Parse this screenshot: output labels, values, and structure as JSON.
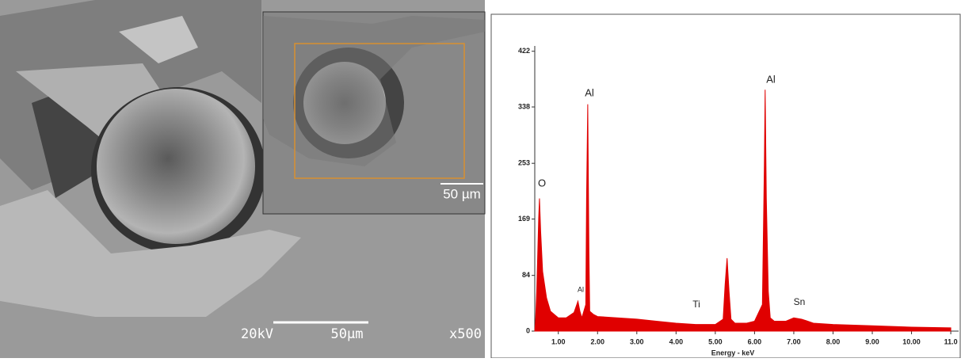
{
  "sem_image": {
    "scale_label": "20kV",
    "scale_bar_label": "50µm",
    "magnification": "x500",
    "inset_scale_label": "50 µm"
  },
  "chart_data": {
    "type": "area",
    "color": "#e00000",
    "x": [
      0.4,
      0.42,
      0.45,
      0.5,
      0.52,
      0.55,
      0.6,
      0.7,
      0.8,
      0.9,
      1.0,
      1.2,
      1.4,
      1.5,
      1.55,
      1.6,
      1.7,
      1.72,
      1.75,
      1.78,
      1.8,
      1.9,
      2.0,
      2.5,
      3.0,
      3.5,
      4.0,
      4.5,
      5.0,
      5.2,
      5.25,
      5.3,
      5.35,
      5.4,
      5.5,
      5.8,
      6.0,
      6.2,
      6.25,
      6.27,
      6.3,
      6.35,
      6.4,
      6.5,
      6.8,
      7.0,
      7.2,
      7.5,
      8.0,
      9.0,
      10.0,
      11.0
    ],
    "values": [
      0,
      15,
      60,
      170,
      200,
      150,
      90,
      50,
      30,
      25,
      20,
      20,
      28,
      45,
      30,
      20,
      40,
      200,
      342,
      120,
      30,
      25,
      22,
      20,
      18,
      15,
      12,
      10,
      10,
      18,
      70,
      110,
      60,
      18,
      12,
      12,
      15,
      40,
      250,
      364,
      200,
      60,
      20,
      15,
      15,
      20,
      18,
      12,
      10,
      8,
      6,
      5
    ],
    "xlim": [
      0.4,
      11.2
    ],
    "ylim": [
      0,
      430
    ],
    "xticks": [
      {
        "value": 1,
        "label": "1.00"
      },
      {
        "value": 2,
        "label": "2.00"
      },
      {
        "value": 3,
        "label": "3.00"
      },
      {
        "value": 4,
        "label": "4.00"
      },
      {
        "value": 5,
        "label": "5.00"
      },
      {
        "value": 6,
        "label": "6.00"
      },
      {
        "value": 7,
        "label": "7.00"
      },
      {
        "value": 8,
        "label": "8.00"
      },
      {
        "value": 9,
        "label": "9.00"
      },
      {
        "value": 10,
        "label": "10.00"
      },
      {
        "value": 11,
        "label": "11.0"
      }
    ],
    "yticks": [
      0,
      84,
      169,
      253,
      338,
      422
    ],
    "xlabel": "Energy - keV",
    "annotations": [
      "O",
      "Al",
      "Al",
      "Al",
      "Ti",
      "Sn"
    ]
  }
}
